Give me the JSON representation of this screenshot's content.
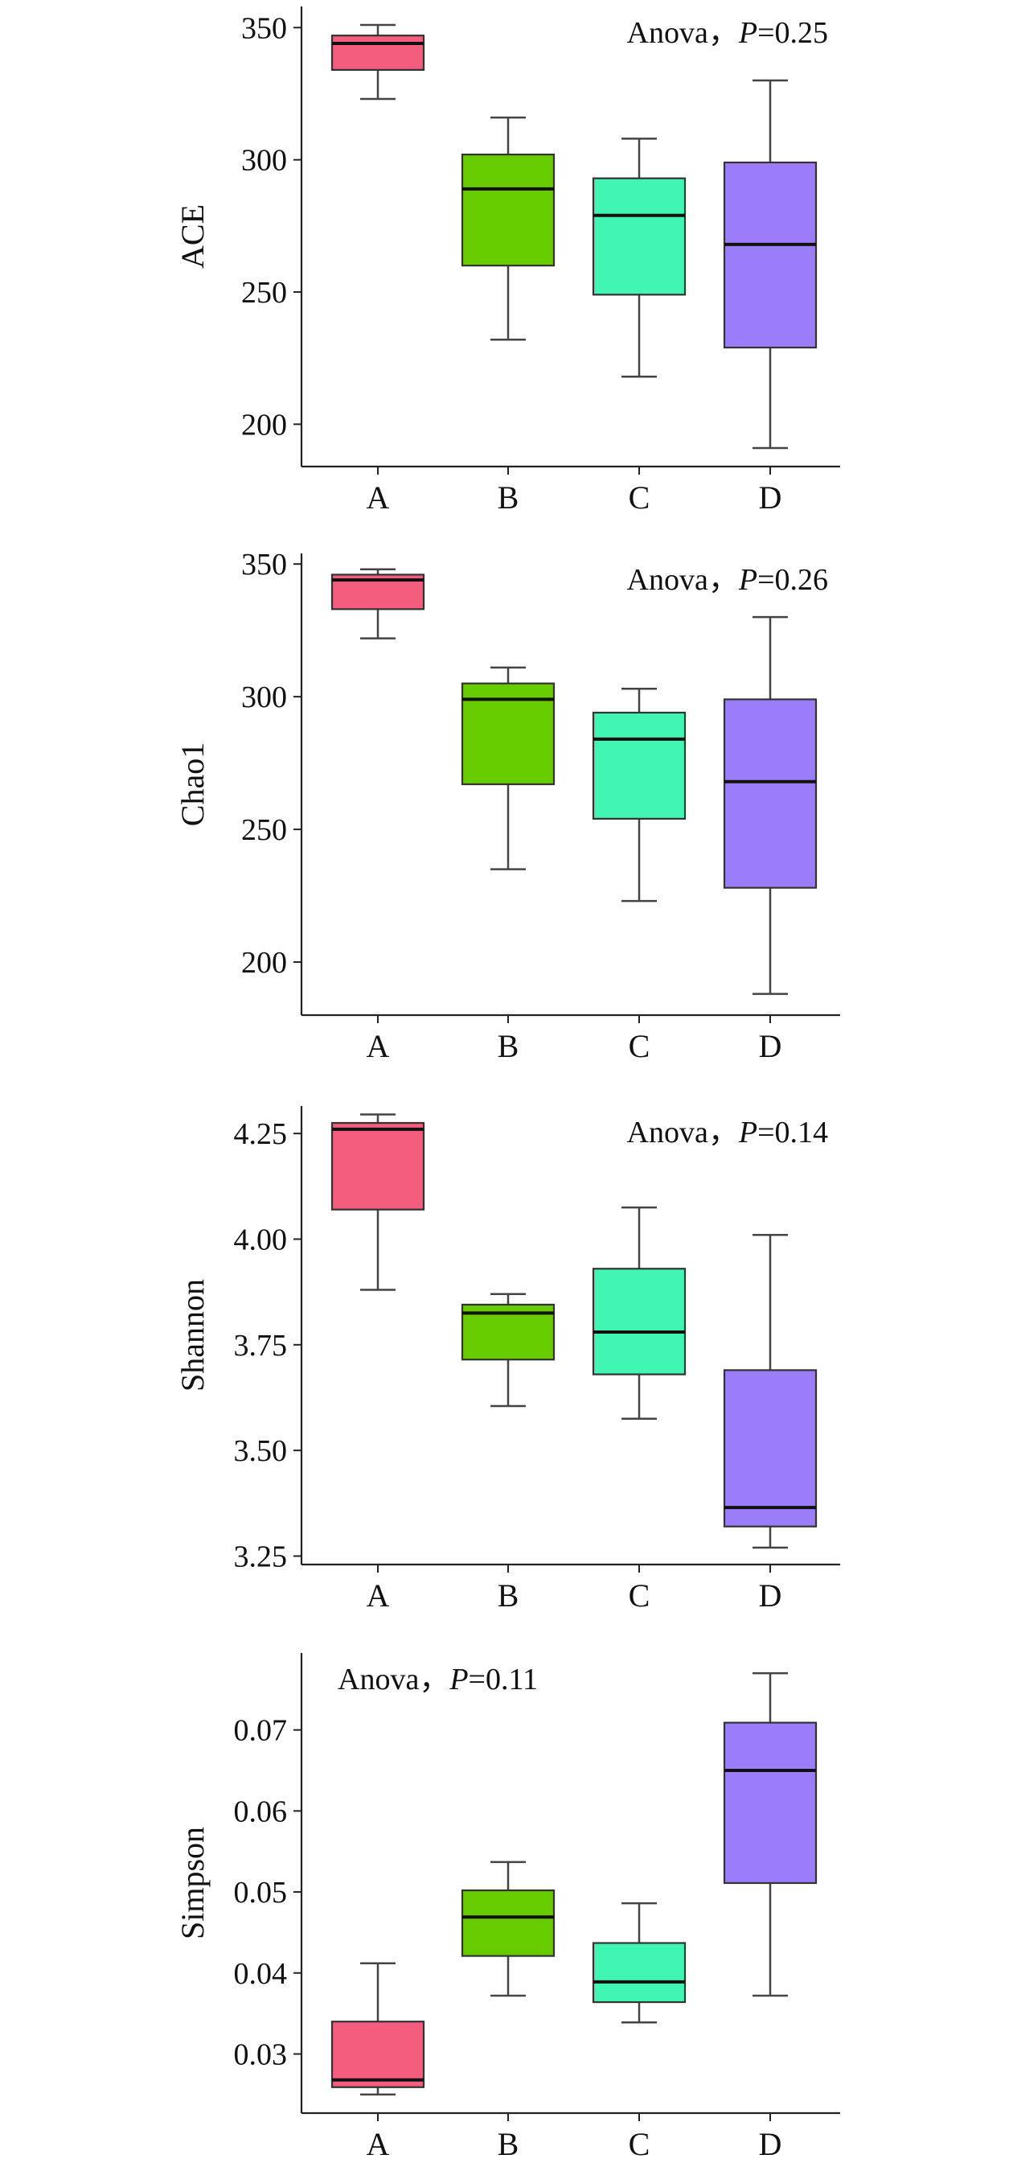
{
  "chart_data": [
    {
      "type": "box",
      "ylabel": "ACE",
      "categories": [
        "A",
        "B",
        "C",
        "D"
      ],
      "annotation": {
        "prefix": "Anova，",
        "p_symbol": "P",
        "p_value": "=0.25",
        "placement": "top-right"
      },
      "yticks": [
        200,
        250,
        300,
        350
      ],
      "ylim": [
        184,
        358
      ],
      "boxes": [
        {
          "category": "A",
          "min": 323,
          "q1": 334,
          "median": 344,
          "q3": 347,
          "max": 351,
          "color": "#f45d7e"
        },
        {
          "category": "B",
          "min": 232,
          "q1": 260,
          "median": 289,
          "q3": 302,
          "max": 316,
          "color": "#66cc00"
        },
        {
          "category": "C",
          "min": 218,
          "q1": 249,
          "median": 279,
          "q3": 293,
          "max": 308,
          "color": "#41f5b3"
        },
        {
          "category": "D",
          "min": 191,
          "q1": 229,
          "median": 268,
          "q3": 299,
          "max": 330,
          "color": "#9b7dfa"
        }
      ]
    },
    {
      "type": "box",
      "ylabel": "Chao1",
      "categories": [
        "A",
        "B",
        "C",
        "D"
      ],
      "annotation": {
        "prefix": "Anova，",
        "p_symbol": "P",
        "p_value": "=0.26",
        "placement": "top-right"
      },
      "yticks": [
        200,
        250,
        300,
        350
      ],
      "ylim": [
        180,
        354
      ],
      "boxes": [
        {
          "category": "A",
          "min": 322,
          "q1": 333,
          "median": 344,
          "q3": 346,
          "max": 348,
          "color": "#f45d7e"
        },
        {
          "category": "B",
          "min": 235,
          "q1": 267,
          "median": 299,
          "q3": 305,
          "max": 311,
          "color": "#66cc00"
        },
        {
          "category": "C",
          "min": 223,
          "q1": 254,
          "median": 284,
          "q3": 294,
          "max": 303,
          "color": "#41f5b3"
        },
        {
          "category": "D",
          "min": 188,
          "q1": 228,
          "median": 268,
          "q3": 299,
          "max": 330,
          "color": "#9b7dfa"
        }
      ]
    },
    {
      "type": "box",
      "ylabel": "Shannon",
      "categories": [
        "A",
        "B",
        "C",
        "D"
      ],
      "annotation": {
        "prefix": "Anova，",
        "p_symbol": "P",
        "p_value": "=0.14",
        "placement": "top-right"
      },
      "yticks": [
        "3.25",
        "3.50",
        "3.75",
        "4.00",
        "4.25"
      ],
      "ylim": [
        3.23,
        4.315
      ],
      "boxes": [
        {
          "category": "A",
          "min": 3.88,
          "q1": 4.07,
          "median": 4.26,
          "q3": 4.275,
          "max": 4.295,
          "color": "#f45d7e"
        },
        {
          "category": "B",
          "min": 3.605,
          "q1": 3.715,
          "median": 3.825,
          "q3": 3.845,
          "max": 3.87,
          "color": "#66cc00"
        },
        {
          "category": "C",
          "min": 3.575,
          "q1": 3.68,
          "median": 3.78,
          "q3": 3.93,
          "max": 4.075,
          "color": "#41f5b3"
        },
        {
          "category": "D",
          "min": 3.27,
          "q1": 3.32,
          "median": 3.365,
          "q3": 3.69,
          "max": 4.01,
          "color": "#9b7dfa"
        }
      ]
    },
    {
      "type": "box",
      "ylabel": "Simpson",
      "categories": [
        "A",
        "B",
        "C",
        "D"
      ],
      "annotation": {
        "prefix": "Anova，",
        "p_symbol": "P",
        "p_value": "=0.11",
        "placement": "top-left"
      },
      "yticks": [
        "0.03",
        "0.04",
        "0.05",
        "0.06",
        "0.07"
      ],
      "ylim": [
        0.0227,
        0.0795
      ],
      "boxes": [
        {
          "category": "A",
          "min": 0.025,
          "q1": 0.0259,
          "median": 0.0268,
          "q3": 0.034,
          "max": 0.0412,
          "color": "#f45d7e"
        },
        {
          "category": "B",
          "min": 0.0372,
          "q1": 0.0421,
          "median": 0.0469,
          "q3": 0.0502,
          "max": 0.0537,
          "color": "#66cc00"
        },
        {
          "category": "C",
          "min": 0.0339,
          "q1": 0.0364,
          "median": 0.0389,
          "q3": 0.0437,
          "max": 0.0486,
          "color": "#41f5b3"
        },
        {
          "category": "D",
          "min": 0.0372,
          "q1": 0.0511,
          "median": 0.065,
          "q3": 0.0709,
          "max": 0.077,
          "color": "#9b7dfa"
        }
      ]
    }
  ]
}
